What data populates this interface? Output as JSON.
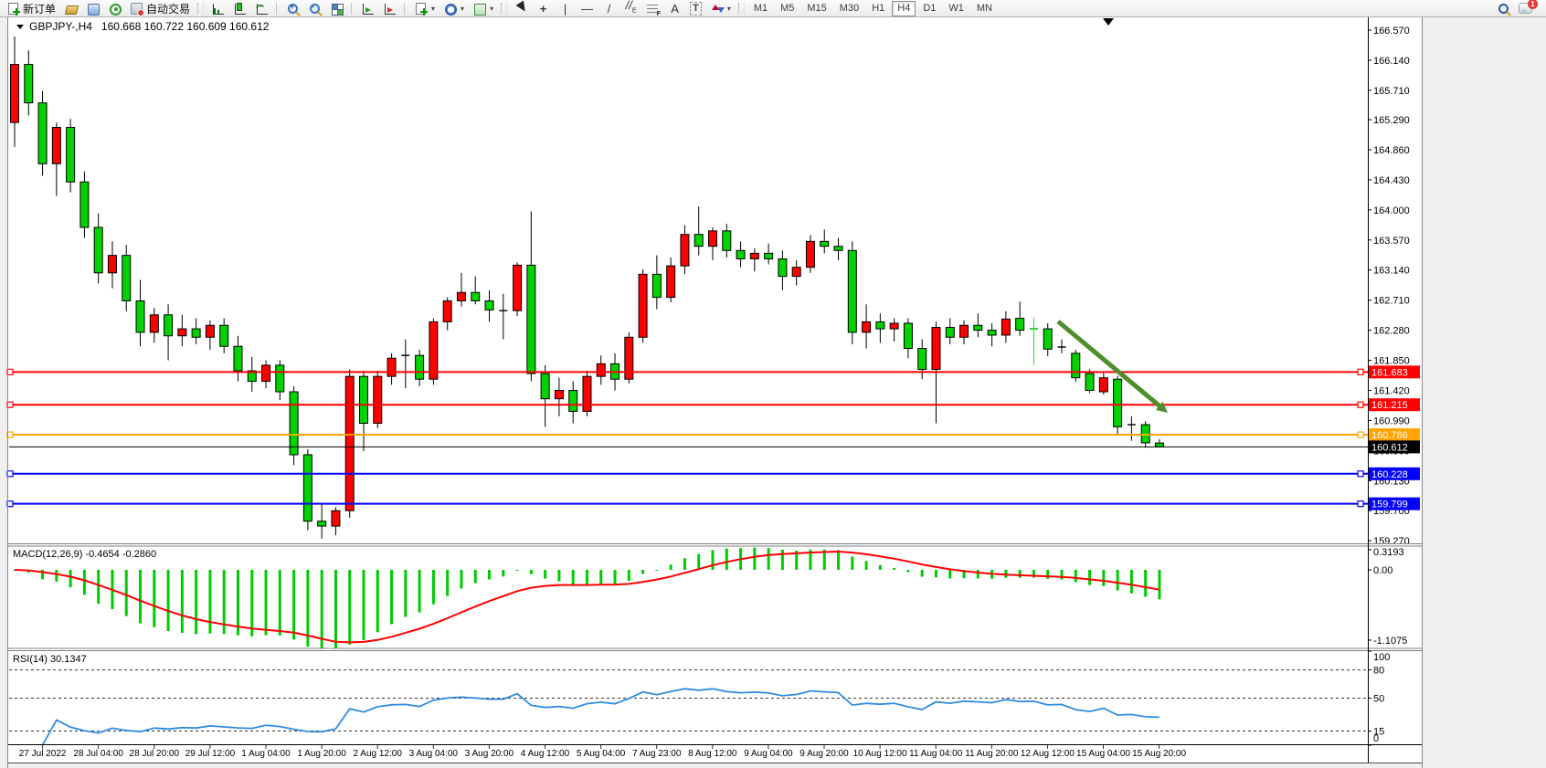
{
  "toolbar": {
    "new_order_label": "新订单",
    "autotrading_label": "自动交易",
    "timeframes": [
      "M1",
      "M5",
      "M15",
      "M30",
      "H1",
      "H4",
      "D1",
      "W1",
      "MN"
    ],
    "active_timeframe": "H4",
    "tools": [
      {
        "name": "cursor-tool",
        "glyph": "cursor"
      },
      {
        "name": "crosshair-tool",
        "glyph": "+"
      },
      {
        "name": "vertical-line-tool",
        "glyph": "|"
      },
      {
        "name": "horizontal-line-tool",
        "glyph": "—"
      },
      {
        "name": "trendline-tool",
        "glyph": "/"
      },
      {
        "name": "channel-tool",
        "glyph": "⁄⁄E"
      },
      {
        "name": "fibonacci-tool",
        "glyph": "fibo"
      },
      {
        "name": "text-tool",
        "glyph": "A"
      },
      {
        "name": "label-tool",
        "glyph": "T"
      },
      {
        "name": "arrows-tool",
        "glyph": "arrows"
      }
    ],
    "notifications_badge": "1"
  },
  "chart": {
    "symbol_period": "GBPJPY-,H4",
    "ohlc_string": "160.668 160.722 160.609 160.612"
  },
  "chart_data": {
    "type": "candlestick",
    "symbol": "GBPJPY-",
    "timeframe": "H4",
    "title": "GBPJPY-,H4 160.668 160.722 160.609 160.612",
    "price_axis_ticks": [
      "166.570",
      "166.140",
      "165.710",
      "165.290",
      "164.860",
      "164.430",
      "164.000",
      "163.570",
      "163.140",
      "162.710",
      "162.280",
      "161.850",
      "161.420",
      "160.990",
      "160.560",
      "160.130",
      "159.700",
      "159.270"
    ],
    "time_labels": [
      "27 Jul 2022",
      "28 Jul 04:00",
      "28 Jul 20:00",
      "29 Jul 12:00",
      "1 Aug 04:00",
      "1 Aug 20:00",
      "2 Aug 12:00",
      "3 Aug 04:00",
      "3 Aug 20:00",
      "4 Aug 12:00",
      "5 Aug 04:00",
      "7 Aug 23:00",
      "8 Aug 12:00",
      "9 Aug 04:00",
      "9 Aug 20:00",
      "10 Aug 12:00",
      "11 Aug 04:00",
      "11 Aug 20:00",
      "12 Aug 12:00",
      "15 Aug 04:00",
      "15 Aug 20:00"
    ],
    "candles": [
      [
        165.25,
        166.48,
        164.9,
        166.08
      ],
      [
        166.08,
        166.28,
        165.35,
        165.53
      ],
      [
        165.53,
        165.7,
        164.49,
        164.66
      ],
      [
        164.66,
        165.25,
        164.2,
        165.18
      ],
      [
        165.18,
        165.3,
        164.25,
        164.4
      ],
      [
        164.4,
        164.55,
        163.6,
        163.75
      ],
      [
        163.75,
        163.95,
        162.95,
        163.1
      ],
      [
        163.1,
        163.55,
        162.88,
        163.35
      ],
      [
        163.35,
        163.5,
        162.55,
        162.7
      ],
      [
        162.7,
        163.0,
        162.05,
        162.25
      ],
      [
        162.25,
        162.6,
        162.1,
        162.5
      ],
      [
        162.5,
        162.65,
        161.85,
        162.2
      ],
      [
        162.2,
        162.5,
        162.05,
        162.3
      ],
      [
        162.3,
        162.45,
        162.08,
        162.18
      ],
      [
        162.18,
        162.42,
        162.0,
        162.35
      ],
      [
        162.35,
        162.45,
        161.95,
        162.05
      ],
      [
        162.05,
        162.2,
        161.55,
        161.7
      ],
      [
        161.7,
        161.9,
        161.4,
        161.55
      ],
      [
        161.55,
        161.85,
        161.45,
        161.78
      ],
      [
        161.78,
        161.85,
        161.28,
        161.4
      ],
      [
        161.4,
        161.48,
        160.35,
        160.5
      ],
      [
        160.5,
        160.58,
        159.42,
        159.55
      ],
      [
        159.55,
        159.8,
        159.3,
        159.48
      ],
      [
        159.48,
        159.75,
        159.35,
        159.7
      ],
      [
        159.7,
        161.72,
        159.6,
        161.62
      ],
      [
        161.62,
        161.7,
        160.55,
        160.95
      ],
      [
        160.95,
        161.7,
        160.88,
        161.62
      ],
      [
        161.62,
        161.95,
        161.5,
        161.88
      ],
      [
        161.9,
        162.15,
        161.45,
        161.92
      ],
      [
        161.92,
        162.0,
        161.48,
        161.58
      ],
      [
        161.58,
        162.45,
        161.5,
        162.4
      ],
      [
        162.4,
        162.75,
        162.28,
        162.7
      ],
      [
        162.7,
        163.1,
        162.62,
        162.82
      ],
      [
        162.82,
        163.05,
        162.65,
        162.7
      ],
      [
        162.7,
        162.85,
        162.4,
        162.57
      ],
      [
        162.57,
        162.8,
        162.15,
        162.56
      ],
      [
        162.56,
        163.25,
        162.48,
        163.21
      ],
      [
        163.21,
        163.98,
        161.55,
        161.66
      ],
      [
        161.66,
        161.78,
        160.9,
        161.3
      ],
      [
        161.3,
        161.6,
        161.05,
        161.42
      ],
      [
        161.42,
        161.55,
        160.95,
        161.12
      ],
      [
        161.12,
        161.7,
        161.05,
        161.62
      ],
      [
        161.62,
        161.92,
        161.5,
        161.8
      ],
      [
        161.8,
        161.95,
        161.42,
        161.58
      ],
      [
        161.58,
        162.25,
        161.52,
        162.18
      ],
      [
        162.18,
        163.15,
        162.1,
        163.08
      ],
      [
        163.08,
        163.35,
        162.58,
        162.75
      ],
      [
        162.75,
        163.32,
        162.68,
        163.2
      ],
      [
        163.2,
        163.78,
        163.08,
        163.65
      ],
      [
        163.65,
        164.05,
        163.35,
        163.48
      ],
      [
        163.48,
        163.75,
        163.28,
        163.7
      ],
      [
        163.7,
        163.8,
        163.32,
        163.42
      ],
      [
        163.42,
        163.55,
        163.18,
        163.3
      ],
      [
        163.3,
        163.45,
        163.12,
        163.38
      ],
      [
        163.38,
        163.52,
        163.22,
        163.3
      ],
      [
        163.3,
        163.42,
        162.85,
        163.05
      ],
      [
        163.05,
        163.28,
        162.92,
        163.18
      ],
      [
        163.18,
        163.64,
        163.1,
        163.55
      ],
      [
        163.55,
        163.72,
        163.38,
        163.48
      ],
      [
        163.48,
        163.6,
        163.28,
        163.42
      ],
      [
        163.42,
        163.55,
        162.08,
        162.25
      ],
      [
        162.25,
        162.65,
        162.02,
        162.4
      ],
      [
        162.4,
        162.52,
        162.1,
        162.3
      ],
      [
        162.3,
        162.45,
        162.12,
        162.38
      ],
      [
        162.38,
        162.45,
        161.88,
        162.02
      ],
      [
        162.02,
        162.15,
        161.58,
        161.72
      ],
      [
        161.72,
        162.4,
        160.95,
        162.32
      ],
      [
        162.32,
        162.45,
        162.08,
        162.18
      ],
      [
        162.18,
        162.42,
        162.08,
        162.35
      ],
      [
        162.35,
        162.52,
        162.18,
        162.28
      ],
      [
        162.28,
        162.38,
        162.05,
        162.21
      ],
      [
        162.21,
        162.55,
        162.1,
        162.44
      ],
      [
        162.45,
        162.69,
        162.2,
        162.28
      ],
      [
        162.31,
        162.46,
        161.78,
        162.3
      ],
      [
        162.3,
        162.38,
        161.91,
        162.01
      ],
      [
        162.05,
        162.15,
        161.95,
        162.04
      ],
      [
        161.95,
        162.0,
        161.54,
        161.6
      ],
      [
        161.66,
        161.72,
        161.38,
        161.42
      ],
      [
        161.4,
        161.68,
        161.36,
        161.6
      ],
      [
        161.58,
        161.63,
        160.78,
        160.9
      ],
      [
        160.94,
        161.05,
        160.7,
        160.93
      ],
      [
        160.93,
        160.98,
        160.6,
        160.67
      ],
      [
        160.668,
        160.722,
        160.609,
        160.612
      ]
    ],
    "special_candles": {
      "28": "black",
      "35": "black",
      "73": "lime",
      "75": "black",
      "80": "black"
    },
    "hlines": [
      {
        "price": 161.683,
        "label": "161.683",
        "color": "#fe0000"
      },
      {
        "price": 161.215,
        "label": "161.215",
        "color": "#fe0000"
      },
      {
        "price": 160.786,
        "label": "160.786",
        "color": "#ffa400"
      },
      {
        "price": 160.228,
        "label": "160.228",
        "color": "#0201fc"
      },
      {
        "price": 159.799,
        "label": "159.799",
        "color": "#0201fc"
      }
    ],
    "current_price": {
      "price": 160.612,
      "label": "160.612",
      "color": "#000000"
    },
    "annotation_arrow": {
      "from": [
        1158,
        352
      ],
      "to": [
        1278,
        452
      ],
      "color": "#4c8f2c"
    },
    "macd": {
      "name": "MACD(12,26,9)",
      "value_main": "-0.4654",
      "value_signal": "-0.2860",
      "scale": [
        {
          "v": 0.3193,
          "label": "0.3193"
        },
        {
          "v": 0,
          "label": "0.00"
        },
        {
          "v": -1.1075,
          "label": "-1.1075"
        }
      ]
    },
    "rsi": {
      "name": "RSI(14)",
      "value": "30.1347",
      "levels": [
        {
          "v": 100,
          "label": "100",
          "dashed": false
        },
        {
          "v": 80,
          "label": "80",
          "dashed": true
        },
        {
          "v": 50,
          "label": "50",
          "dashed": true
        },
        {
          "v": 15,
          "label": "15",
          "dashed": true
        },
        {
          "v": 0,
          "label": "0",
          "dashed": false
        }
      ]
    }
  },
  "colors": {
    "bull": "#fb0200",
    "bear": "#00d300",
    "outline": "#000000",
    "macd_hist": "#00cc00",
    "macd_signal": "#ff0000",
    "rsi_line": "#2e8ce0",
    "lime_cross": "#2fd32f",
    "window_bg": "#ffffff",
    "frame": "#4d4d4d"
  }
}
